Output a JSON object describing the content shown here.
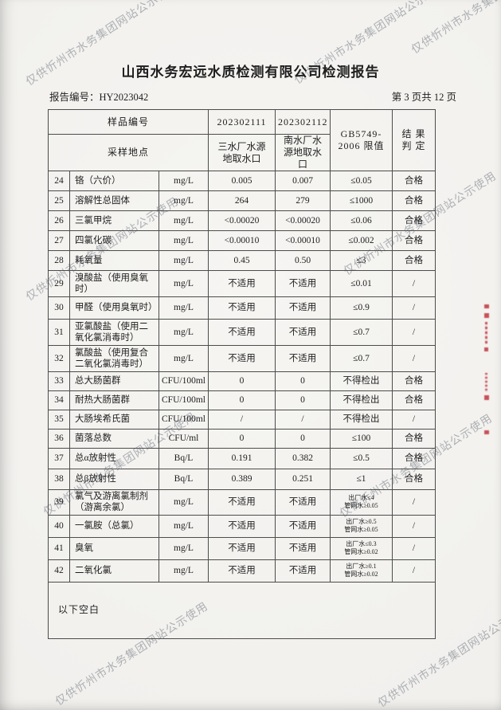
{
  "page": {
    "watermark": "仅供忻州市水务集团网站公示使用",
    "title": "山西水务宏远水质检测有限公司检测报告",
    "report_no": "报告编号：HY2023042",
    "page_indicator": "第 3 页共 12 页"
  },
  "table": {
    "header": {
      "sample_no_label": "样品编号",
      "site_label": "采样地点",
      "sample1_no": "202302111",
      "sample2_no": "202302112",
      "sample1_site": "三水厂水源地取水口",
      "sample2_site": "南水厂水源地取水口",
      "standard_line1": "GB5749-",
      "standard_line2": "2006 限值",
      "result_line1": "结 果",
      "result_line2": "判 定"
    },
    "rows": [
      {
        "no": "24",
        "item": "铬（六价）",
        "unit": "mg/L",
        "v1": "0.005",
        "v2": "0.007",
        "limit": "≤0.05",
        "result": "合格"
      },
      {
        "no": "25",
        "item": "溶解性总固体",
        "unit": "mg/L",
        "v1": "264",
        "v2": "279",
        "limit": "≤1000",
        "result": "合格"
      },
      {
        "no": "26",
        "item": "三氯甲烷",
        "unit": "mg/L",
        "v1": "<0.00020",
        "v2": "<0.00020",
        "limit": "≤0.06",
        "result": "合格"
      },
      {
        "no": "27",
        "item": "四氯化碳",
        "unit": "mg/L",
        "v1": "<0.00010",
        "v2": "<0.00010",
        "limit": "≤0.002",
        "result": "合格"
      },
      {
        "no": "28",
        "item": "耗氧量",
        "unit": "mg/L",
        "v1": "0.45",
        "v2": "0.50",
        "limit": "≤3",
        "result": "合格"
      },
      {
        "no": "29",
        "item": "溴酸盐（使用臭氧时）",
        "unit": "mg/L",
        "v1": "不适用",
        "v2": "不适用",
        "limit": "≤0.01",
        "result": "/"
      },
      {
        "no": "30",
        "item": "甲醛（使用臭氧时）",
        "unit": "mg/L",
        "v1": "不适用",
        "v2": "不适用",
        "limit": "≤0.9",
        "result": "/"
      },
      {
        "no": "31",
        "item": "亚氯酸盐（使用二氧化氯消毒时）",
        "unit": "mg/L",
        "v1": "不适用",
        "v2": "不适用",
        "limit": "≤0.7",
        "result": "/"
      },
      {
        "no": "32",
        "item": "氯酸盐（使用复合二氧化氯消毒时）",
        "unit": "mg/L",
        "v1": "不适用",
        "v2": "不适用",
        "limit": "≤0.7",
        "result": "/"
      },
      {
        "no": "33",
        "item": "总大肠菌群",
        "unit": "CFU/100ml",
        "v1": "0",
        "v2": "0",
        "limit": "不得检出",
        "result": "合格"
      },
      {
        "no": "34",
        "item": "耐热大肠菌群",
        "unit": "CFU/100ml",
        "v1": "0",
        "v2": "0",
        "limit": "不得检出",
        "result": "合格"
      },
      {
        "no": "35",
        "item": "大肠埃希氏菌",
        "unit": "CFU/100ml",
        "v1": "/",
        "v2": "/",
        "limit": "不得检出",
        "result": "/"
      },
      {
        "no": "36",
        "item": "菌落总数",
        "unit": "CFU/ml",
        "v1": "0",
        "v2": "0",
        "limit": "≤100",
        "result": "合格"
      },
      {
        "no": "37",
        "item": "总α放射性",
        "unit": "Bq/L",
        "v1": "0.191",
        "v2": "0.382",
        "limit": "≤0.5",
        "result": "合格"
      },
      {
        "no": "38",
        "item": "总β放射性",
        "unit": "Bq/L",
        "v1": "0.389",
        "v2": "0.251",
        "limit": "≤1",
        "result": "合格"
      },
      {
        "no": "39",
        "item": "氯气及游离氯制剂（游离余氯）",
        "unit": "mg/L",
        "v1": "不适用",
        "v2": "不适用",
        "limit": "出厂水≤4",
        "limit2": "管网水≥0.05",
        "result": "/"
      },
      {
        "no": "40",
        "item": "一氯胺（总氯）",
        "unit": "mg/L",
        "v1": "不适用",
        "v2": "不适用",
        "limit": "出厂水≥0.5",
        "limit2": "管网水≥0.05",
        "result": "/"
      },
      {
        "no": "41",
        "item": "臭氧",
        "unit": "mg/L",
        "v1": "不适用",
        "v2": "不适用",
        "limit": "出厂水≤0.3",
        "limit2": "管网水≥0.02",
        "result": "/"
      },
      {
        "no": "42",
        "item": "二氧化氯",
        "unit": "mg/L",
        "v1": "不适用",
        "v2": "不适用",
        "limit": "出厂水≥0.1",
        "limit2": "管网水≥0.02",
        "result": "/"
      }
    ],
    "footer_note": "以下空白"
  },
  "stamp": {
    "color": "#c03540"
  }
}
